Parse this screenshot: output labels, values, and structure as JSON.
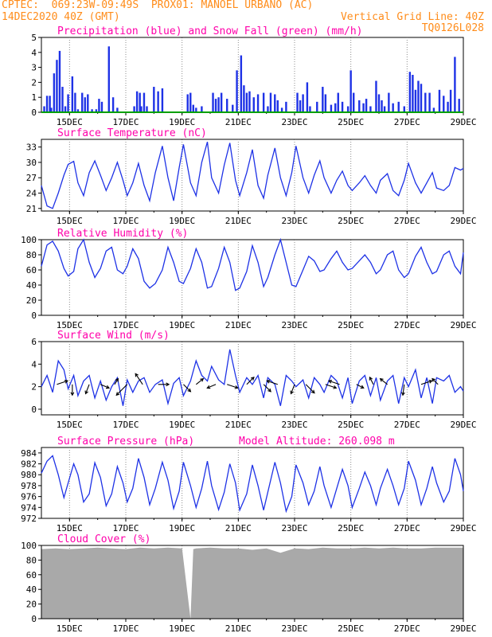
{
  "header": {
    "line1_left": "CPTEC:  069:23W-09:49S  PROX01: MANOEL URBANO (AC)",
    "line2_left": "14DEC2020 40Z (GMT)",
    "line2_right": "Vertical Grid Line: 40Z",
    "line3_right": "TQ0126L028"
  },
  "colors": {
    "header": "#ff8c1a",
    "title": "#ff00aa",
    "series_line": "#1e32e6",
    "precip_bar": "#1e32e6",
    "snow_line": "#00a000",
    "cloud_fill": "#a9a9a9",
    "grid": "#8c8c8c"
  },
  "x_axis_ticks": [
    "15DEC",
    "17DEC",
    "19DEC",
    "21DEC",
    "23DEC",
    "25DEC",
    "27DEC",
    "29DEC"
  ],
  "chart_data": [
    {
      "type": "bar",
      "title": "Precipitation (blue) and Snow Fall (green) (mm/h)",
      "xlim_days": [
        14.0,
        29.0
      ],
      "ylim": [
        0,
        5
      ],
      "yticks": [
        0,
        1,
        2,
        3,
        4,
        5
      ],
      "x_day": [
        14.1,
        14.2,
        14.3,
        14.35,
        14.45,
        14.55,
        14.65,
        14.75,
        14.85,
        14.95,
        15.1,
        15.2,
        15.3,
        15.45,
        15.55,
        15.65,
        15.8,
        15.95,
        16.05,
        16.15,
        16.4,
        16.55,
        16.7,
        17.3,
        17.4,
        17.5,
        17.55,
        17.65,
        17.75,
        18.0,
        18.15,
        18.3,
        19.2,
        19.3,
        19.4,
        19.5,
        19.7,
        20.1,
        20.2,
        20.3,
        20.4,
        20.6,
        20.8,
        20.95,
        21.1,
        21.2,
        21.3,
        21.4,
        21.55,
        21.7,
        21.9,
        22.05,
        22.15,
        22.3,
        22.4,
        22.55,
        22.7,
        23.1,
        23.2,
        23.3,
        23.45,
        23.55,
        23.8,
        24.0,
        24.1,
        24.3,
        24.45,
        24.55,
        24.7,
        24.9,
        25.0,
        25.1,
        25.3,
        25.45,
        25.55,
        25.7,
        25.9,
        26.0,
        26.1,
        26.2,
        26.35,
        26.5,
        26.7,
        26.9,
        27.1,
        27.2,
        27.3,
        27.4,
        27.5,
        27.65,
        27.8,
        27.95,
        28.15,
        28.3,
        28.45,
        28.55,
        28.7,
        28.85
      ],
      "values": [
        0.4,
        1.1,
        1.1,
        0.3,
        2.6,
        3.5,
        4.1,
        1.7,
        0.4,
        1.2,
        2.4,
        1.3,
        0.2,
        1.3,
        1.0,
        1.2,
        0.2,
        0.2,
        0.9,
        0.7,
        4.4,
        1.0,
        0.3,
        0.4,
        1.4,
        1.3,
        0.4,
        1.3,
        0.4,
        1.7,
        1.4,
        1.6,
        1.2,
        1.3,
        0.5,
        0.3,
        0.4,
        1.3,
        0.9,
        1.0,
        1.3,
        0.9,
        0.5,
        2.8,
        3.8,
        1.8,
        1.3,
        1.4,
        1.0,
        1.2,
        1.3,
        0.4,
        1.3,
        1.2,
        0.8,
        0.3,
        0.7,
        1.3,
        0.8,
        1.2,
        2.0,
        0.4,
        0.7,
        1.7,
        1.2,
        0.5,
        0.6,
        1.3,
        0.7,
        0.4,
        2.8,
        1.3,
        0.8,
        0.6,
        0.9,
        0.4,
        2.1,
        1.2,
        0.8,
        0.4,
        1.3,
        0.6,
        0.7,
        0.4,
        2.7,
        2.5,
        1.5,
        2.1,
        1.9,
        1.3,
        1.3,
        0.3,
        1.5,
        1.1,
        0.7,
        1.5,
        3.7,
        0.9
      ],
      "snow": 0
    },
    {
      "type": "line",
      "title": "Surface Temperature (nC)",
      "xlim_days": [
        14.0,
        29.0
      ],
      "ylim": [
        20.5,
        34.5
      ],
      "yticks": [
        21,
        24,
        27,
        30,
        33
      ],
      "x_day": [
        14.0,
        14.2,
        14.4,
        14.6,
        14.8,
        14.95,
        15.15,
        15.3,
        15.5,
        15.7,
        15.9,
        16.1,
        16.3,
        16.5,
        16.7,
        16.9,
        17.05,
        17.25,
        17.45,
        17.65,
        17.85,
        18.05,
        18.3,
        18.5,
        18.7,
        18.9,
        19.05,
        19.3,
        19.5,
        19.7,
        19.9,
        20.05,
        20.3,
        20.5,
        20.7,
        20.9,
        21.05,
        21.3,
        21.5,
        21.7,
        21.9,
        22.05,
        22.3,
        22.5,
        22.7,
        22.9,
        23.05,
        23.3,
        23.5,
        23.7,
        23.9,
        24.05,
        24.3,
        24.5,
        24.7,
        24.9,
        25.05,
        25.3,
        25.5,
        25.7,
        25.9,
        26.05,
        26.3,
        26.5,
        26.7,
        26.9,
        27.05,
        27.3,
        27.5,
        27.7,
        27.9,
        28.05,
        28.3,
        28.5,
        28.7,
        28.9,
        29.0
      ],
      "values": [
        25.5,
        21.5,
        21.0,
        24.0,
        27.5,
        29.6,
        30.2,
        26.0,
        23.5,
        28.0,
        30.3,
        27.5,
        24.5,
        27.0,
        30.0,
        26.5,
        23.5,
        26.0,
        29.8,
        25.5,
        22.5,
        28.0,
        33.2,
        27.0,
        22.5,
        29.0,
        33.5,
        26.0,
        23.5,
        30.0,
        34.0,
        27.0,
        24.0,
        29.5,
        33.8,
        26.5,
        23.5,
        28.0,
        32.5,
        25.5,
        23.0,
        27.5,
        32.8,
        27.0,
        23.5,
        28.0,
        33.2,
        27.0,
        24.0,
        27.5,
        30.3,
        27.0,
        24.0,
        26.5,
        28.3,
        25.5,
        24.5,
        26.0,
        27.4,
        25.5,
        24.0,
        26.5,
        27.8,
        24.5,
        23.5,
        26.5,
        29.8,
        26.0,
        24.0,
        26.0,
        28.0,
        25.0,
        24.5,
        25.5,
        29.0,
        28.5,
        28.8
      ]
    },
    {
      "type": "line",
      "title": "Relative Humidity (%)",
      "xlim_days": [
        14.0,
        29.0
      ],
      "ylim": [
        0,
        100
      ],
      "yticks": [
        0,
        20,
        40,
        60,
        80,
        100
      ],
      "x_day": [
        14.0,
        14.2,
        14.4,
        14.6,
        14.8,
        14.95,
        15.15,
        15.3,
        15.5,
        15.7,
        15.9,
        16.1,
        16.3,
        16.5,
        16.7,
        16.9,
        17.05,
        17.25,
        17.45,
        17.65,
        17.85,
        18.05,
        18.3,
        18.5,
        18.7,
        18.9,
        19.05,
        19.3,
        19.5,
        19.7,
        19.9,
        20.05,
        20.3,
        20.5,
        20.7,
        20.9,
        21.05,
        21.3,
        21.5,
        21.7,
        21.9,
        22.05,
        22.3,
        22.5,
        22.7,
        22.9,
        23.05,
        23.3,
        23.5,
        23.7,
        23.9,
        24.05,
        24.3,
        24.5,
        24.7,
        24.9,
        25.05,
        25.3,
        25.5,
        25.7,
        25.9,
        26.05,
        26.3,
        26.5,
        26.7,
        26.9,
        27.05,
        27.3,
        27.5,
        27.7,
        27.9,
        28.05,
        28.3,
        28.5,
        28.7,
        28.9,
        29.0
      ],
      "values": [
        65,
        93,
        98,
        85,
        62,
        52,
        58,
        88,
        100,
        70,
        50,
        62,
        85,
        90,
        60,
        55,
        65,
        88,
        75,
        45,
        36,
        42,
        60,
        90,
        70,
        45,
        42,
        62,
        88,
        70,
        36,
        38,
        62,
        90,
        70,
        33,
        36,
        58,
        92,
        70,
        38,
        50,
        80,
        100,
        70,
        40,
        38,
        60,
        78,
        72,
        58,
        60,
        75,
        85,
        70,
        60,
        62,
        72,
        80,
        70,
        55,
        60,
        80,
        85,
        60,
        50,
        55,
        78,
        90,
        70,
        55,
        58,
        80,
        85,
        65,
        55,
        83
      ]
    },
    {
      "type": "line",
      "title": "Surface Wind (m/s)",
      "xlim_days": [
        14.0,
        29.0
      ],
      "ylim": [
        -0.5,
        6
      ],
      "yticks": [
        0,
        2,
        4,
        6
      ],
      "x_day": [
        14.0,
        14.2,
        14.4,
        14.6,
        14.8,
        14.95,
        15.15,
        15.3,
        15.5,
        15.7,
        15.9,
        16.1,
        16.3,
        16.5,
        16.7,
        16.9,
        17.05,
        17.25,
        17.45,
        17.65,
        17.85,
        18.05,
        18.3,
        18.5,
        18.7,
        18.9,
        19.05,
        19.3,
        19.5,
        19.7,
        19.9,
        20.05,
        20.3,
        20.5,
        20.7,
        20.9,
        21.05,
        21.3,
        21.5,
        21.7,
        21.9,
        22.05,
        22.3,
        22.5,
        22.7,
        22.9,
        23.05,
        23.3,
        23.5,
        23.7,
        23.9,
        24.05,
        24.3,
        24.5,
        24.7,
        24.9,
        25.05,
        25.3,
        25.5,
        25.7,
        25.9,
        26.05,
        26.3,
        26.5,
        26.7,
        26.9,
        27.05,
        27.3,
        27.5,
        27.7,
        27.9,
        28.05,
        28.3,
        28.5,
        28.7,
        28.9,
        29.0
      ],
      "values": [
        2.0,
        3.0,
        1.5,
        4.3,
        3.5,
        1.8,
        3.0,
        1.2,
        2.5,
        3.0,
        1.0,
        2.5,
        0.8,
        2.0,
        2.8,
        0.3,
        2.6,
        1.5,
        2.5,
        2.8,
        1.5,
        2.2,
        2.6,
        0.5,
        2.3,
        2.8,
        1.2,
        2.5,
        4.3,
        3.0,
        2.5,
        3.8,
        2.6,
        2.2,
        5.3,
        3.0,
        1.5,
        2.8,
        2.2,
        3.0,
        1.0,
        2.8,
        2.2,
        0.3,
        3.0,
        2.5,
        2.0,
        2.6,
        1.0,
        2.8,
        2.2,
        1.5,
        3.0,
        2.5,
        1.0,
        2.8,
        0.5,
        2.5,
        3.0,
        1.2,
        2.8,
        0.8,
        2.5,
        3.0,
        0.5,
        2.8,
        2.0,
        3.5,
        1.0,
        2.8,
        0.5,
        2.8,
        2.5,
        3.0,
        1.5,
        2.0,
        1.6
      ],
      "barbs": {
        "x_day": [
          14.55,
          15.1,
          15.7,
          16.1,
          16.6,
          17.05,
          17.6,
          18.15,
          19.05,
          19.5,
          20.2,
          20.6,
          21.3,
          21.9,
          22.4,
          23.0,
          23.4,
          24.1,
          24.6,
          25.2,
          25.8,
          26.3,
          26.9,
          27.5,
          28.1
        ],
        "u": [
          1.5,
          0.0,
          -0.5,
          1.2,
          0.5,
          -1.5,
          -1.0,
          1.5,
          1.0,
          1.0,
          -1.2,
          1.5,
          1.0,
          1.0,
          -1.5,
          -0.5,
          1.2,
          1.5,
          -1.5,
          1.0,
          -0.5,
          -1.0,
          -0.2,
          1.5,
          -0.8
        ],
        "v": [
          0.5,
          -1.5,
          -1.3,
          -0.5,
          0.8,
          -1.5,
          1.5,
          0.0,
          -1.0,
          0.8,
          -0.5,
          -0.5,
          1.0,
          -1.0,
          0.5,
          -1.3,
          -1.2,
          -0.5,
          0.5,
          -0.5,
          1.0,
          0.8,
          -1.5,
          0.5,
          0.8
        ]
      }
    },
    {
      "type": "line",
      "title": "Surface Pressure (hPa)",
      "annotation": "Model Altitude: 260.098 m",
      "xlim_days": [
        14.0,
        29.0
      ],
      "ylim": [
        972,
        985
      ],
      "yticks": [
        972,
        974,
        976,
        978,
        980,
        982,
        984
      ],
      "x_day": [
        14.0,
        14.2,
        14.4,
        14.6,
        14.8,
        14.95,
        15.15,
        15.3,
        15.5,
        15.7,
        15.9,
        16.1,
        16.3,
        16.5,
        16.7,
        16.9,
        17.05,
        17.25,
        17.45,
        17.65,
        17.85,
        18.05,
        18.3,
        18.5,
        18.7,
        18.9,
        19.05,
        19.3,
        19.5,
        19.7,
        19.9,
        20.05,
        20.3,
        20.5,
        20.7,
        20.9,
        21.05,
        21.3,
        21.5,
        21.7,
        21.9,
        22.05,
        22.3,
        22.5,
        22.7,
        22.9,
        23.05,
        23.3,
        23.5,
        23.7,
        23.9,
        24.05,
        24.3,
        24.5,
        24.7,
        24.9,
        25.05,
        25.3,
        25.5,
        25.7,
        25.9,
        26.05,
        26.3,
        26.5,
        26.7,
        26.9,
        27.05,
        27.3,
        27.5,
        27.7,
        27.9,
        28.05,
        28.3,
        28.5,
        28.7,
        28.9,
        29.0
      ],
      "values": [
        980.3,
        982.5,
        983.5,
        980.0,
        975.8,
        978.5,
        982.0,
        980.0,
        975.0,
        976.5,
        982.2,
        979.5,
        974.3,
        976.5,
        981.5,
        978.5,
        975.0,
        977.5,
        983.0,
        979.5,
        974.5,
        977.5,
        982.3,
        979.0,
        973.8,
        977.0,
        982.3,
        978.0,
        974.0,
        977.5,
        982.5,
        978.0,
        973.6,
        976.8,
        982.0,
        978.5,
        973.5,
        976.5,
        981.8,
        978.0,
        973.5,
        976.8,
        982.3,
        978.5,
        973.3,
        976.0,
        981.8,
        978.5,
        974.5,
        977.0,
        981.5,
        978.0,
        974.0,
        977.5,
        981.0,
        978.0,
        974.0,
        977.5,
        980.5,
        978.0,
        974.5,
        977.5,
        981.0,
        978.0,
        974.5,
        977.5,
        982.5,
        979.0,
        974.5,
        977.5,
        981.5,
        978.5,
        975.0,
        977.0,
        983.0,
        980.0,
        977.0
      ]
    },
    {
      "type": "area",
      "title": "Cloud Cover (%)",
      "xlim_days": [
        14.0,
        29.0
      ],
      "ylim": [
        0,
        100
      ],
      "yticks": [
        0,
        20,
        40,
        60,
        80,
        100
      ],
      "x_day": [
        14.0,
        14.5,
        15.0,
        15.5,
        16.0,
        16.5,
        17.0,
        17.5,
        18.0,
        18.5,
        19.0,
        19.3,
        19.4,
        19.5,
        20.0,
        20.5,
        21.0,
        21.5,
        22.0,
        22.5,
        23.0,
        23.5,
        24.0,
        24.5,
        25.0,
        25.5,
        26.0,
        26.5,
        27.0,
        27.5,
        28.0,
        28.5,
        29.0
      ],
      "values": [
        95,
        96,
        95,
        96,
        97,
        96,
        95,
        97,
        96,
        97,
        96,
        0,
        95,
        96,
        97,
        96,
        96,
        94,
        96,
        90,
        96,
        95,
        97,
        96,
        96,
        97,
        96,
        97,
        96,
        96,
        97,
        97,
        97
      ]
    }
  ]
}
